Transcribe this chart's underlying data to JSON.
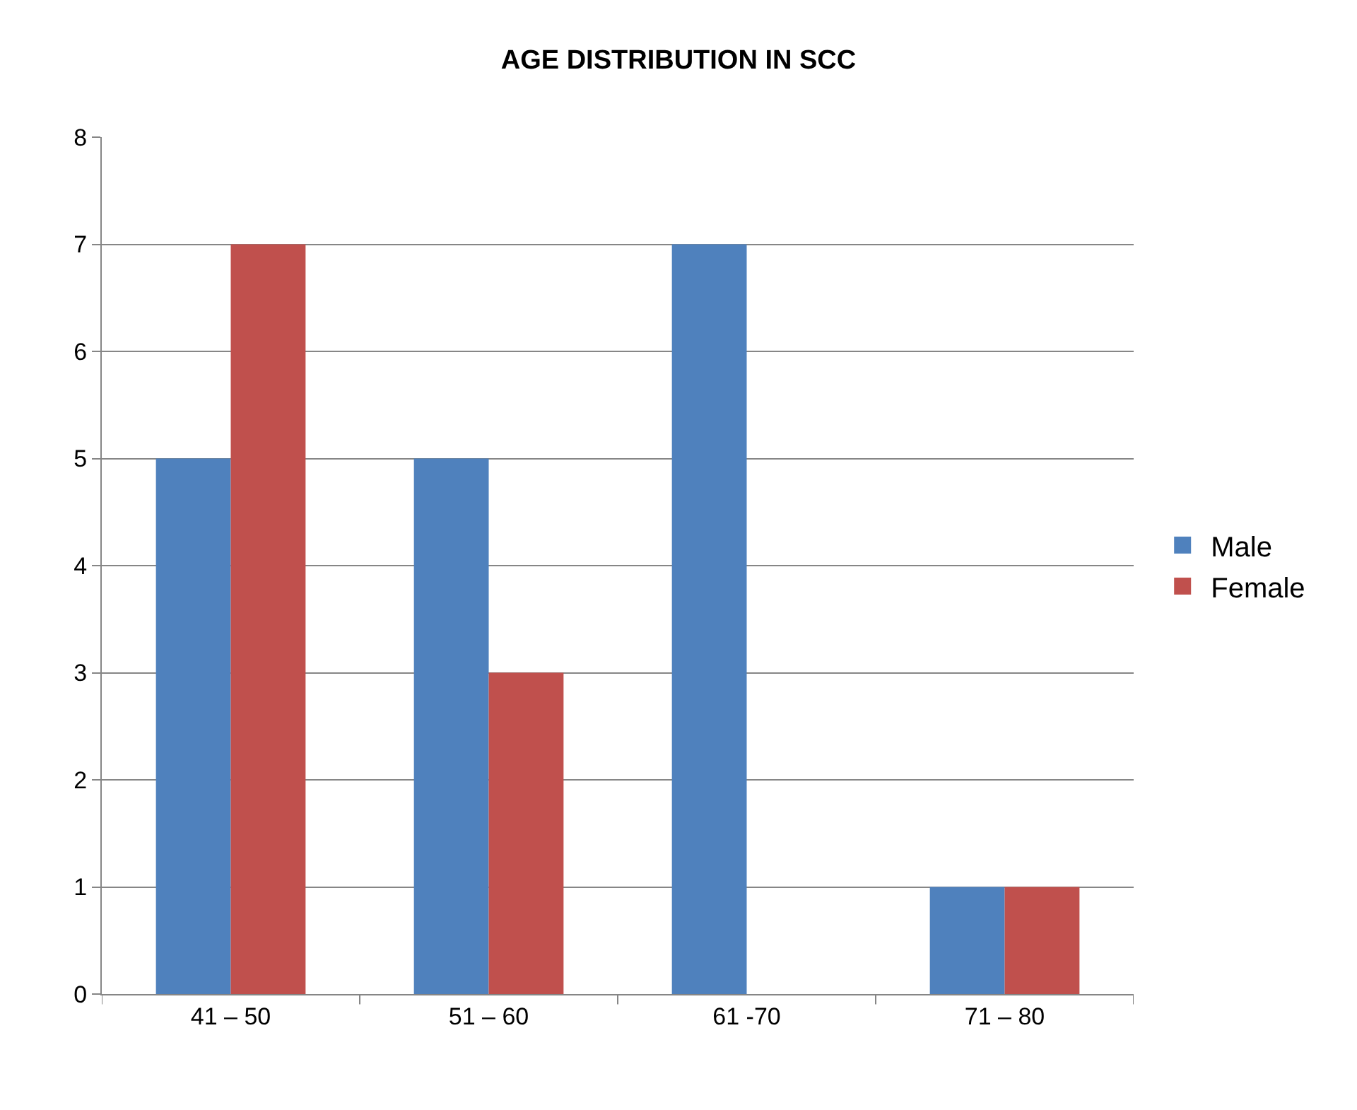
{
  "chart_data": {
    "type": "bar",
    "title": "AGE DISTRIBUTION IN SCC",
    "categories": [
      "41 – 50",
      "51 – 60",
      "61 -70",
      "71 – 80"
    ],
    "series": [
      {
        "name": "Male",
        "color": "#4f81bd",
        "values": [
          5,
          5,
          7,
          1
        ]
      },
      {
        "name": "Female",
        "color": "#c0504d",
        "values": [
          7,
          3,
          0,
          1
        ]
      }
    ],
    "ylim": [
      0,
      8
    ],
    "yticks": [
      0,
      1,
      2,
      3,
      4,
      5,
      6,
      7,
      8
    ],
    "grid": "y",
    "legend": "right"
  }
}
